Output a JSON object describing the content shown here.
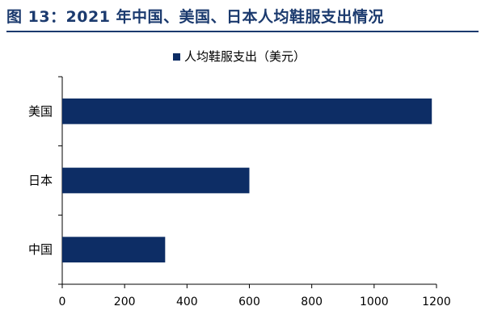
{
  "figure_title": "图 13：2021 年中国、美国、日本人均鞋服支出情况",
  "chart_data": {
    "type": "bar",
    "orientation": "horizontal",
    "title": "",
    "categories": [
      "美国",
      "日本",
      "中国"
    ],
    "series": [
      {
        "name": "人均鞋服支出（美元）",
        "values": [
          1185,
          600,
          330
        ]
      }
    ],
    "xlabel": "",
    "ylabel": "",
    "xlim": [
      0,
      1200
    ],
    "xticks": [
      0,
      200,
      400,
      600,
      800,
      1000,
      1200
    ],
    "grid": false,
    "legend_position": "top-center"
  },
  "colors": {
    "bar": "#0d2d65",
    "title": "#1b3a6e",
    "axis": "#000000",
    "text": "#000000"
  }
}
